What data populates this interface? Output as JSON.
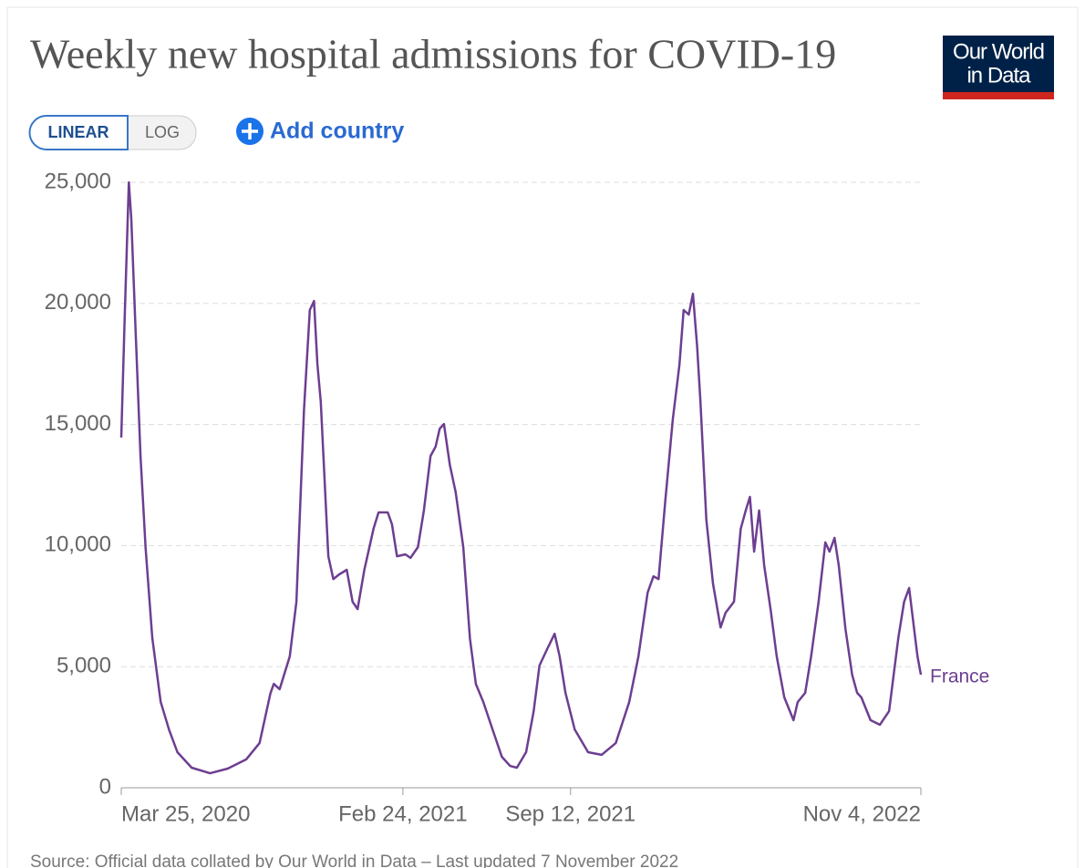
{
  "chart_data": {
    "type": "line",
    "title": "Weekly new hospital admissions for COVID-19",
    "logo": [
      "Our World",
      "in Data"
    ],
    "scale_buttons": [
      "LINEAR",
      "LOG"
    ],
    "add_button": "Add country",
    "source": "Source: Official data collated by Our World in Data – Last updated 7 November 2022",
    "log_scale": false,
    "grid": true,
    "xlim": [
      "2020-03-25",
      "2022-11-04"
    ],
    "xticks": [
      {
        "value": "2020-03-25",
        "label": "Mar 25, 2020"
      },
      {
        "value": "2021-02-24",
        "label": "Feb 24, 2021"
      },
      {
        "value": "2021-09-12",
        "label": "Sep 12, 2021"
      },
      {
        "value": "2022-11-04",
        "label": "Nov 4, 2022"
      }
    ],
    "ylim": [
      0,
      25000
    ],
    "yticks": [
      0,
      {
        "value": 5000,
        "label": "5,000"
      },
      {
        "value": 10000,
        "label": "10,000"
      },
      {
        "value": 15000,
        "label": "15,000"
      },
      {
        "value": 20000,
        "label": "20,000"
      },
      {
        "value": 25000,
        "label": "25,000"
      }
    ],
    "x": [
      "2020-03-25",
      "2020-03-29",
      "2020-04-03",
      "2020-04-06",
      "2020-04-11",
      "2020-04-17",
      "2020-04-23",
      "2020-05-01",
      "2020-05-11",
      "2020-05-21",
      "2020-05-31",
      "2020-06-17",
      "2020-07-09",
      "2020-07-30",
      "2020-08-21",
      "2020-09-06",
      "2020-09-19",
      "2020-09-23",
      "2020-09-30",
      "2020-10-12",
      "2020-10-20",
      "2020-10-29",
      "2020-11-05",
      "2020-11-10",
      "2020-11-14",
      "2020-11-18",
      "2020-11-27",
      "2020-12-03",
      "2020-12-10",
      "2020-12-19",
      "2020-12-26",
      "2021-01-01",
      "2021-01-09",
      "2021-01-20",
      "2021-01-26",
      "2021-02-06",
      "2021-02-11",
      "2021-02-17",
      "2021-02-27",
      "2021-03-05",
      "2021-03-14",
      "2021-03-21",
      "2021-03-29",
      "2021-04-04",
      "2021-04-09",
      "2021-04-14",
      "2021-04-21",
      "2021-04-28",
      "2021-05-07",
      "2021-05-15",
      "2021-05-22",
      "2021-05-31",
      "2021-06-11",
      "2021-06-22",
      "2021-07-02",
      "2021-07-10",
      "2021-07-21",
      "2021-07-30",
      "2021-08-06",
      "2021-08-15",
      "2021-08-24",
      "2021-08-30",
      "2021-09-06",
      "2021-09-17",
      "2021-10-03",
      "2021-10-19",
      "2021-11-05",
      "2021-11-21",
      "2021-12-02",
      "2021-12-13",
      "2021-12-20",
      "2021-12-26",
      "2022-01-03",
      "2022-01-12",
      "2022-01-20",
      "2022-01-25",
      "2022-01-31",
      "2022-02-05",
      "2022-02-10",
      "2022-02-14",
      "2022-02-21",
      "2022-03-01",
      "2022-03-10",
      "2022-03-16",
      "2022-03-26",
      "2022-04-03",
      "2022-04-09",
      "2022-04-14",
      "2022-04-19",
      "2022-04-25",
      "2022-05-01",
      "2022-05-09",
      "2022-05-16",
      "2022-05-25",
      "2022-06-05",
      "2022-06-10",
      "2022-06-19",
      "2022-06-26",
      "2022-07-05",
      "2022-07-13",
      "2022-07-18",
      "2022-07-24",
      "2022-07-29",
      "2022-08-06",
      "2022-08-14",
      "2022-08-20",
      "2022-08-25",
      "2022-09-05",
      "2022-09-16",
      "2022-09-27",
      "2022-10-08",
      "2022-10-15",
      "2022-10-21",
      "2022-10-27",
      "2022-10-31",
      "2022-11-04"
    ],
    "series": [
      {
        "name": "France",
        "color": "#6d3e91",
        "values": [
          14460,
          19350,
          25000,
          23500,
          19000,
          13700,
          9900,
          6200,
          3550,
          2400,
          1470,
          830,
          600,
          790,
          1170,
          1850,
          3900,
          4290,
          4070,
          5420,
          7680,
          15600,
          19730,
          20100,
          17500,
          15950,
          9560,
          8620,
          8810,
          9000,
          7680,
          7380,
          9000,
          10700,
          11370,
          11370,
          10880,
          9560,
          9640,
          9490,
          9940,
          11450,
          13700,
          14080,
          14830,
          15020,
          13330,
          12200,
          9940,
          6170,
          4290,
          3540,
          2410,
          1280,
          900,
          830,
          1470,
          3160,
          5050,
          5720,
          6360,
          5420,
          3920,
          2410,
          1470,
          1360,
          1850,
          3540,
          5420,
          8060,
          8730,
          8620,
          11820,
          15210,
          17470,
          19730,
          19540,
          20400,
          18220,
          15960,
          11070,
          8430,
          6620,
          7230,
          7680,
          10690,
          11450,
          12010,
          9750,
          11450,
          9190,
          7300,
          5420,
          3730,
          2790,
          3540,
          3920,
          5420,
          7680,
          10130,
          9750,
          10320,
          9190,
          6550,
          4670,
          3920,
          3730,
          2790,
          2600,
          3160,
          6170,
          7680,
          8250,
          6550,
          5420,
          4670
        ]
      }
    ]
  }
}
